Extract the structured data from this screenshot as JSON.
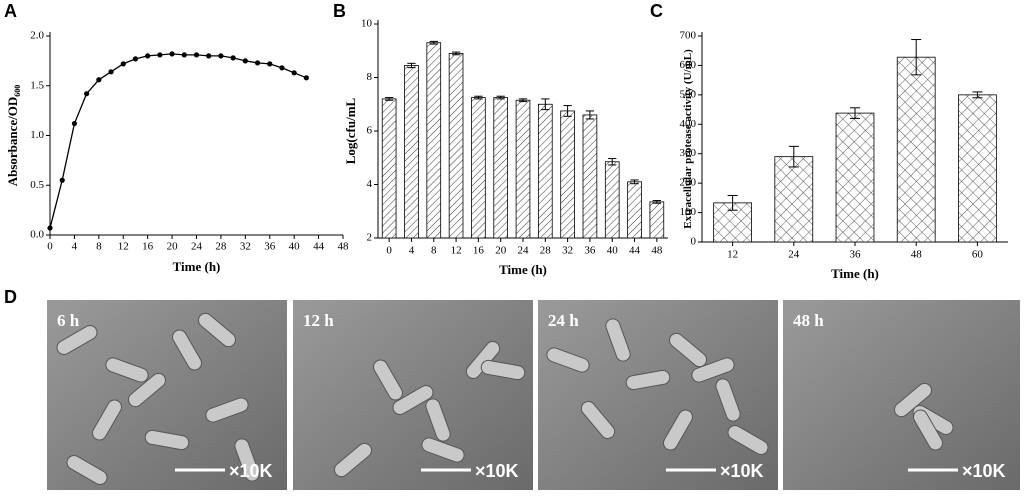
{
  "panel_labels": [
    "A",
    "B",
    "C",
    "D"
  ],
  "chart_data": [
    {
      "type": "line",
      "x_label": "Time (h)",
      "y_label": "Absorbance/OD",
      "y_label_sub": "600",
      "x": [
        0,
        2,
        4,
        6,
        8,
        10,
        12,
        14,
        16,
        18,
        20,
        22,
        24,
        26,
        28,
        30,
        32,
        34,
        36,
        38,
        40,
        42
      ],
      "values": [
        0.07,
        0.55,
        1.12,
        1.42,
        1.56,
        1.64,
        1.72,
        1.77,
        1.8,
        1.81,
        1.82,
        1.81,
        1.81,
        1.8,
        1.8,
        1.78,
        1.75,
        1.73,
        1.72,
        1.68,
        1.63,
        1.58
      ],
      "color": "#000000",
      "xlim": [
        0,
        48
      ],
      "xticks": [
        0,
        4,
        8,
        12,
        16,
        20,
        24,
        28,
        32,
        36,
        40,
        44,
        48
      ],
      "ylim": [
        0,
        2.0
      ],
      "yticks": [
        {
          "value": 0,
          "label": "0.0"
        },
        0.5,
        {
          "value": 1,
          "label": "1.0"
        },
        1.5,
        {
          "value": 2,
          "label": "2.0"
        }
      ]
    },
    {
      "type": "bar",
      "x_label": "Time (h)",
      "y_label": "Log(cfu/mL",
      "categories": [
        "0",
        "4",
        "8",
        "12",
        "16",
        "20",
        "24",
        "28",
        "32",
        "36",
        "40",
        "44",
        "48"
      ],
      "values": [
        7.2,
        8.45,
        9.3,
        8.9,
        7.25,
        7.25,
        7.15,
        7.0,
        6.75,
        6.6,
        4.85,
        4.1,
        3.35
      ],
      "errors": [
        0.05,
        0.08,
        0.05,
        0.05,
        0.05,
        0.05,
        0.05,
        0.2,
        0.2,
        0.15,
        0.12,
        0.07,
        0.05
      ],
      "pattern": "diagonal",
      "ylim": [
        2,
        10
      ],
      "yticks": [
        2,
        4,
        6,
        8,
        10
      ]
    },
    {
      "type": "bar",
      "x_label": "Time (h)",
      "y_label": "Extracellular protease activity (U/mL)",
      "categories": [
        "12",
        "24",
        "36",
        "48",
        "60"
      ],
      "values": [
        133,
        290,
        438,
        628,
        500
      ],
      "errors": [
        25,
        35,
        18,
        60,
        10
      ],
      "pattern": "cross",
      "ylim": [
        0,
        700
      ],
      "yticks": [
        0,
        100,
        200,
        300,
        400,
        500,
        600,
        700
      ]
    }
  ],
  "micrographs": [
    {
      "label": "6 h",
      "scale": "×10K"
    },
    {
      "label": "12 h",
      "scale": "×10K"
    },
    {
      "label": "24 h",
      "scale": "×10K"
    },
    {
      "label": "48 h",
      "scale": "×10K"
    }
  ]
}
